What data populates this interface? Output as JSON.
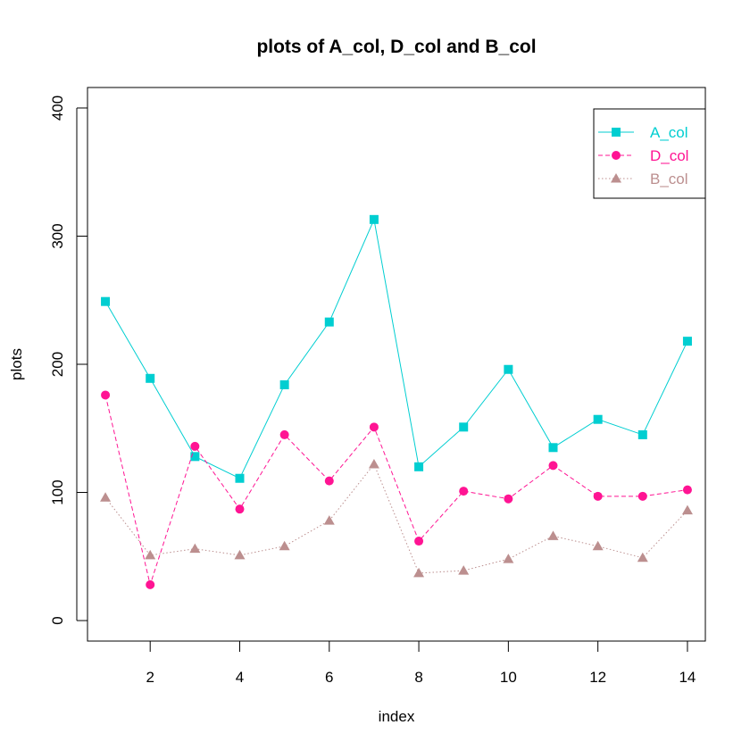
{
  "chart_data": {
    "type": "line",
    "title": "plots of A_col, D_col and B_col",
    "xlabel": "index",
    "ylabel": "plots",
    "x": [
      1,
      2,
      3,
      4,
      5,
      6,
      7,
      8,
      9,
      10,
      11,
      12,
      13,
      14
    ],
    "xlim": [
      0.6,
      14.4
    ],
    "ylim": [
      -16,
      416
    ],
    "x_ticks": [
      2,
      4,
      6,
      8,
      10,
      12,
      14
    ],
    "y_ticks": [
      0,
      100,
      200,
      300,
      400
    ],
    "grid": false,
    "legend_position": "top-right",
    "series": [
      {
        "name": "A_col",
        "color": "#00CED1",
        "marker": "square",
        "line_style": "solid",
        "values": [
          249,
          189,
          128,
          111,
          184,
          233,
          313,
          120,
          151,
          196,
          135,
          157,
          145,
          218
        ]
      },
      {
        "name": "D_col",
        "color": "#FF1493",
        "marker": "circle",
        "line_style": "dashed",
        "values": [
          176,
          28,
          136,
          87,
          145,
          109,
          151,
          62,
          101,
          95,
          121,
          97,
          97,
          102
        ]
      },
      {
        "name": "B_col",
        "color": "#BC8F8F",
        "marker": "triangle",
        "line_style": "dotted",
        "values": [
          96,
          51,
          56,
          51,
          58,
          78,
          122,
          37,
          39,
          48,
          66,
          58,
          49,
          86
        ]
      }
    ]
  }
}
